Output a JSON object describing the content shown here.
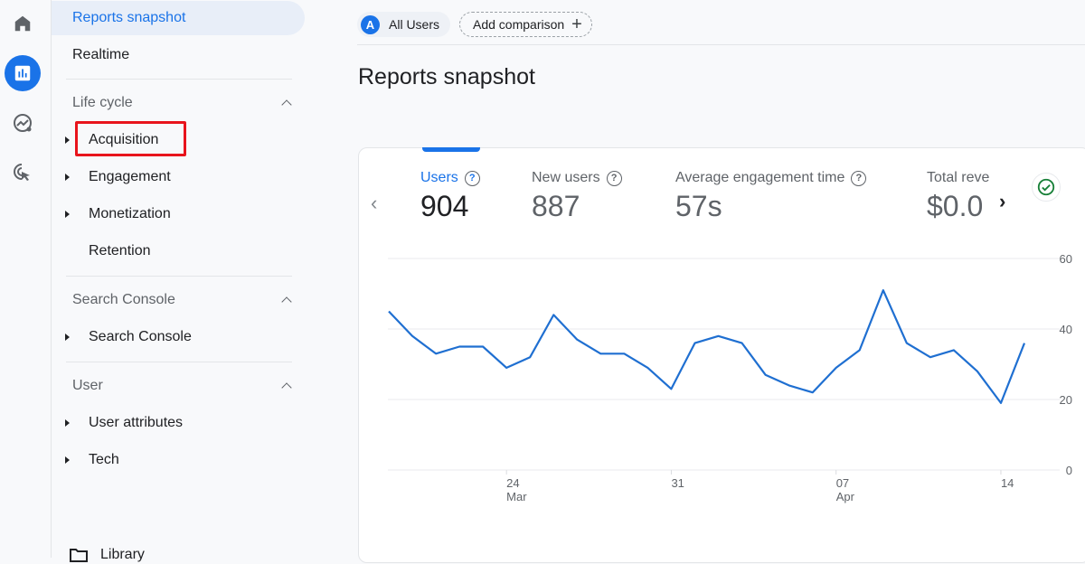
{
  "rail": {
    "items": [
      {
        "name": "home",
        "icon": "home-icon",
        "active": false
      },
      {
        "name": "reports",
        "icon": "bar-chart-icon",
        "active": true
      },
      {
        "name": "explore",
        "icon": "explore-trend-icon",
        "active": false
      },
      {
        "name": "advertising",
        "icon": "cursor-target-icon",
        "active": false
      }
    ]
  },
  "nav": {
    "reports_snapshot": "Reports snapshot",
    "realtime": "Realtime",
    "sections": [
      {
        "title": "Life cycle",
        "items": [
          "Acquisition",
          "Engagement",
          "Monetization",
          "Retention"
        ]
      },
      {
        "title": "Search Console",
        "items": [
          "Search Console"
        ]
      },
      {
        "title": "User",
        "items": [
          "User attributes",
          "Tech"
        ]
      }
    ],
    "library": "Library",
    "highlighted_item": "Acquisition"
  },
  "topbar": {
    "segment_avatar": "A",
    "segment_label": "All Users",
    "add_comparison": "Add comparison",
    "add_icon": "+"
  },
  "main": {
    "title": "Reports snapshot",
    "metrics": [
      {
        "label": "Users",
        "value": "904",
        "active": true
      },
      {
        "label": "New users",
        "value": "887",
        "active": false
      },
      {
        "label": "Average engagement time",
        "value": "57s",
        "active": false
      },
      {
        "label": "Total reve",
        "value": "$0.0",
        "active": false
      }
    ],
    "help_icon": "?",
    "prev_arrow": "‹",
    "next_arrow": "›"
  },
  "colors": {
    "accent": "#1a73e8",
    "line": "#1f6fd1",
    "highlight_box": "#e8141c",
    "check": "#188038"
  },
  "chart_data": {
    "type": "line",
    "title": "Users",
    "xlabel": "",
    "ylabel": "",
    "ylim": [
      0,
      60
    ],
    "y_ticks": [
      "0",
      "20",
      "40",
      "60"
    ],
    "x_ticks": [
      {
        "label": "24",
        "sub": "Mar",
        "index": 5
      },
      {
        "label": "31",
        "sub": "",
        "index": 12
      },
      {
        "label": "07",
        "sub": "Apr",
        "index": 19
      },
      {
        "label": "14",
        "sub": "",
        "index": 26
      }
    ],
    "grid": true,
    "series": [
      {
        "name": "Users",
        "values": [
          45,
          38,
          33,
          35,
          35,
          29,
          32,
          44,
          37,
          33,
          33,
          29,
          23,
          36,
          38,
          36,
          27,
          24,
          22,
          29,
          34,
          51,
          36,
          32,
          34,
          28,
          19,
          36
        ]
      }
    ]
  }
}
